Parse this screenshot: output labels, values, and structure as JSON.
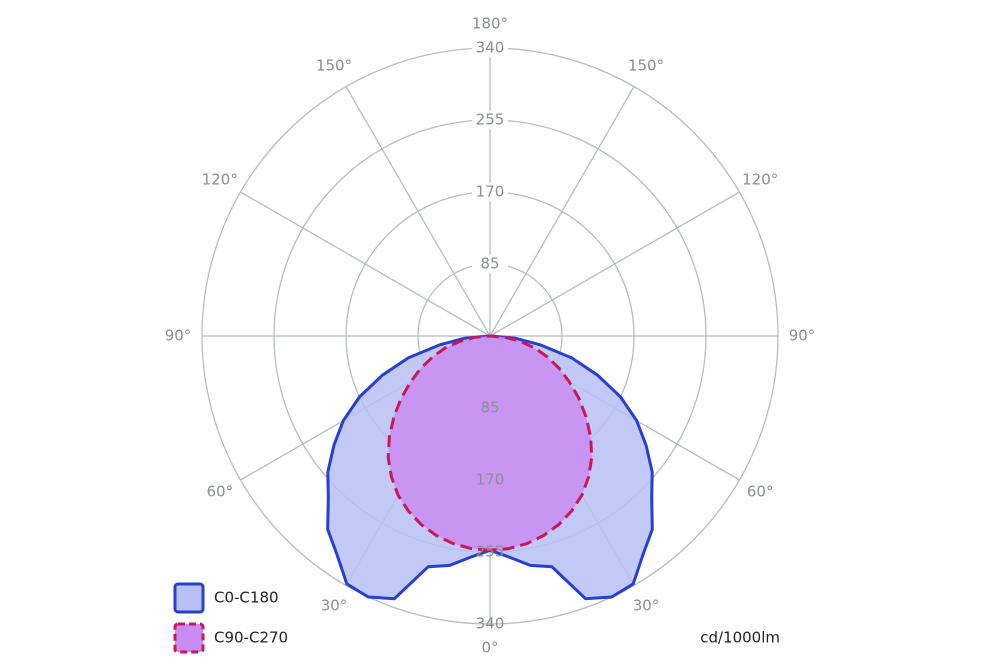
{
  "chart_data": {
    "type": "polar",
    "unit_label": "cd/1000lm",
    "angles": [
      0,
      5,
      10,
      15,
      20,
      25,
      30,
      35,
      40,
      45,
      50,
      55,
      60,
      65,
      70,
      75,
      80,
      85,
      90
    ],
    "series": [
      {
        "name": "C0-C180",
        "color": "#2a3fcf",
        "fill": "#b9c0f6",
        "dashed": false,
        "values": [
          253,
          262,
          275,
          282,
          330,
          340,
          338,
          315,
          298,
          270,
          250,
          225,
          200,
          170,
          135,
          100,
          60,
          30,
          0
        ]
      },
      {
        "name": "C90-C270",
        "color": "#c8185a",
        "fill": "#c98cf2",
        "dashed": true,
        "values": [
          253,
          252,
          249,
          244,
          237,
          228,
          217,
          203,
          187,
          168,
          148,
          128,
          108,
          90,
          72,
          55,
          36,
          18,
          0
        ]
      }
    ],
    "rlim": [
      0,
      340
    ],
    "rticks": [
      85,
      170,
      255,
      340
    ],
    "angle_ticks": [
      {
        "value": 0,
        "label": "0°"
      },
      {
        "value": 30,
        "label": "30°"
      },
      {
        "value": 60,
        "label": "60°"
      },
      {
        "value": 90,
        "label": "90°"
      },
      {
        "value": 120,
        "label": "120°"
      },
      {
        "value": 150,
        "label": "150°"
      },
      {
        "value": 180,
        "label": "180°"
      }
    ]
  }
}
